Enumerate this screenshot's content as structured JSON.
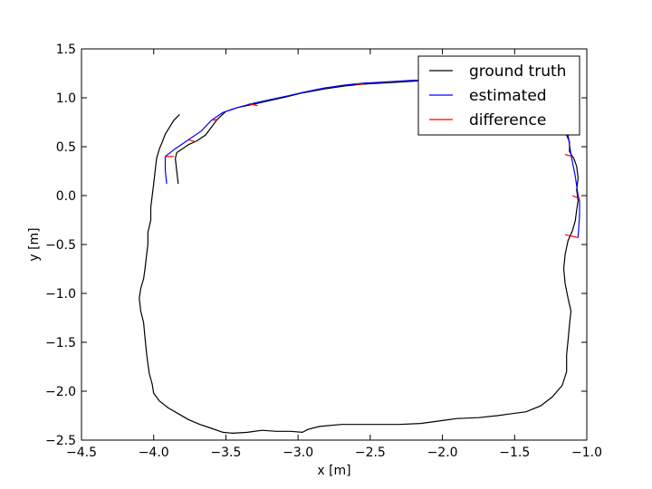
{
  "chart_data": {
    "type": "line",
    "xlabel": "x [m]",
    "ylabel": "y [m]",
    "xlim": [
      -4.5,
      -1.0
    ],
    "ylim": [
      -2.5,
      1.5
    ],
    "xticks": [
      "−4.5",
      "−4.0",
      "−3.5",
      "−3.0",
      "−2.5",
      "−2.0",
      "−1.5",
      "−1.0"
    ],
    "yticks": [
      "−2.5",
      "−2.0",
      "−1.5",
      "−1.0",
      "−0.5",
      "0.0",
      "0.5",
      "1.0",
      "1.5"
    ],
    "xtick_values": [
      -4.5,
      -4.0,
      -3.5,
      -3.0,
      -2.5,
      -2.0,
      -1.5,
      -1.0
    ],
    "ytick_values": [
      -2.5,
      -2.0,
      -1.5,
      -1.0,
      -0.5,
      0.0,
      0.5,
      1.0,
      1.5
    ],
    "grid": false,
    "legend_position": "top-right",
    "series": [
      {
        "name": "ground truth",
        "color": "#000000",
        "points": [
          [
            -3.83,
            0.12
          ],
          [
            -3.84,
            0.25
          ],
          [
            -3.85,
            0.38
          ],
          [
            -3.84,
            0.44
          ],
          [
            -3.8,
            0.48
          ],
          [
            -3.76,
            0.52
          ],
          [
            -3.7,
            0.56
          ],
          [
            -3.64,
            0.62
          ],
          [
            -3.6,
            0.7
          ],
          [
            -3.56,
            0.78
          ],
          [
            -3.5,
            0.86
          ],
          [
            -3.42,
            0.9
          ],
          [
            -3.32,
            0.93
          ],
          [
            -3.2,
            0.97
          ],
          [
            -3.08,
            1.01
          ],
          [
            -2.97,
            1.05
          ],
          [
            -2.82,
            1.09
          ],
          [
            -2.68,
            1.12
          ],
          [
            -2.55,
            1.14
          ],
          [
            -2.42,
            1.15
          ],
          [
            -2.3,
            1.16
          ],
          [
            -2.2,
            1.17
          ],
          [
            -2.1,
            1.18
          ],
          [
            -1.15,
            0.65
          ],
          [
            -1.12,
            0.55
          ],
          [
            -1.12,
            0.45
          ],
          [
            -1.09,
            0.38
          ],
          [
            -1.07,
            0.3
          ],
          [
            -1.06,
            0.18
          ],
          [
            -1.07,
            0.06
          ],
          [
            -1.06,
            -0.05
          ],
          [
            -1.07,
            -0.15
          ],
          [
            -1.08,
            -0.26
          ],
          [
            -1.1,
            -0.36
          ],
          [
            -1.13,
            -0.46
          ],
          [
            -1.15,
            -0.6
          ],
          [
            -1.16,
            -0.75
          ],
          [
            -1.15,
            -0.9
          ],
          [
            -1.13,
            -1.05
          ],
          [
            -1.11,
            -1.18
          ],
          [
            -1.12,
            -1.32
          ],
          [
            -1.13,
            -1.48
          ],
          [
            -1.14,
            -1.63
          ],
          [
            -1.14,
            -1.8
          ],
          [
            -1.17,
            -1.94
          ],
          [
            -1.24,
            -2.06
          ],
          [
            -1.32,
            -2.15
          ],
          [
            -1.42,
            -2.21
          ],
          [
            -1.52,
            -2.23
          ],
          [
            -1.62,
            -2.25
          ],
          [
            -1.75,
            -2.27
          ],
          [
            -1.9,
            -2.28
          ],
          [
            -2.0,
            -2.3
          ],
          [
            -2.15,
            -2.33
          ],
          [
            -2.3,
            -2.34
          ],
          [
            -2.5,
            -2.34
          ],
          [
            -2.7,
            -2.34
          ],
          [
            -2.85,
            -2.36
          ],
          [
            -2.93,
            -2.39
          ],
          [
            -2.97,
            -2.42
          ],
          [
            -3.05,
            -2.41
          ],
          [
            -3.15,
            -2.41
          ],
          [
            -3.25,
            -2.4
          ],
          [
            -3.35,
            -2.42
          ],
          [
            -3.45,
            -2.43
          ],
          [
            -3.52,
            -2.42
          ],
          [
            -3.6,
            -2.38
          ],
          [
            -3.68,
            -2.34
          ],
          [
            -3.76,
            -2.29
          ],
          [
            -3.83,
            -2.23
          ],
          [
            -3.9,
            -2.17
          ],
          [
            -3.96,
            -2.1
          ],
          [
            -4.0,
            -2.02
          ],
          [
            -4.01,
            -1.93
          ],
          [
            -4.03,
            -1.82
          ],
          [
            -4.04,
            -1.72
          ],
          [
            -4.05,
            -1.6
          ],
          [
            -4.06,
            -1.45
          ],
          [
            -4.07,
            -1.3
          ],
          [
            -4.09,
            -1.18
          ],
          [
            -4.1,
            -1.05
          ],
          [
            -4.09,
            -0.95
          ],
          [
            -4.07,
            -0.85
          ],
          [
            -4.06,
            -0.75
          ],
          [
            -4.05,
            -0.62
          ],
          [
            -4.04,
            -0.5
          ],
          [
            -4.04,
            -0.38
          ],
          [
            -4.02,
            -0.25
          ],
          [
            -4.02,
            -0.12
          ],
          [
            -4.01,
            0.0
          ],
          [
            -4.0,
            0.12
          ],
          [
            -3.99,
            0.25
          ],
          [
            -3.98,
            0.38
          ],
          [
            -3.96,
            0.48
          ],
          [
            -3.94,
            0.55
          ],
          [
            -3.92,
            0.63
          ],
          [
            -3.89,
            0.7
          ],
          [
            -3.86,
            0.77
          ],
          [
            -3.82,
            0.83
          ]
        ]
      },
      {
        "name": "estimated",
        "color": "#0000ff",
        "points": [
          [
            -3.91,
            0.12
          ],
          [
            -3.92,
            0.26
          ],
          [
            -3.92,
            0.4
          ],
          [
            -3.85,
            0.48
          ],
          [
            -3.76,
            0.57
          ],
          [
            -3.67,
            0.66
          ],
          [
            -3.6,
            0.77
          ],
          [
            -3.52,
            0.85
          ],
          [
            -3.42,
            0.9
          ],
          [
            -3.32,
            0.94
          ],
          [
            -3.2,
            0.98
          ],
          [
            -3.07,
            1.02
          ],
          [
            -2.95,
            1.06
          ],
          [
            -2.82,
            1.1
          ],
          [
            -2.68,
            1.13
          ],
          [
            -2.55,
            1.15
          ],
          [
            -2.42,
            1.16
          ],
          [
            -2.3,
            1.17
          ],
          [
            -2.2,
            1.18
          ],
          [
            -2.1,
            1.18
          ],
          [
            -1.13,
            0.62
          ],
          [
            -1.11,
            0.42
          ],
          [
            -1.08,
            0.2
          ],
          [
            -1.06,
            0.0
          ],
          [
            -1.05,
            -0.05
          ],
          [
            -1.05,
            -0.2
          ],
          [
            -1.06,
            -0.43
          ]
        ]
      },
      {
        "name": "difference",
        "color": "#ff0000",
        "points": []
      }
    ],
    "difference_segments": [
      [
        [
          -3.92,
          0.4
        ],
        [
          -3.86,
          0.4
        ]
      ],
      [
        [
          -3.76,
          0.57
        ],
        [
          -3.71,
          0.55
        ]
      ],
      [
        [
          -3.6,
          0.77
        ],
        [
          -3.55,
          0.78
        ]
      ],
      [
        [
          -3.34,
          0.94
        ],
        [
          -3.28,
          0.92
        ]
      ],
      [
        [
          -2.6,
          1.14
        ],
        [
          -2.55,
          1.14
        ]
      ],
      [
        [
          -1.15,
          0.42
        ],
        [
          -1.1,
          0.4
        ]
      ],
      [
        [
          -1.1,
          0.0
        ],
        [
          -1.05,
          -0.03
        ]
      ],
      [
        [
          -1.15,
          -0.4
        ],
        [
          -1.06,
          -0.43
        ]
      ]
    ]
  }
}
